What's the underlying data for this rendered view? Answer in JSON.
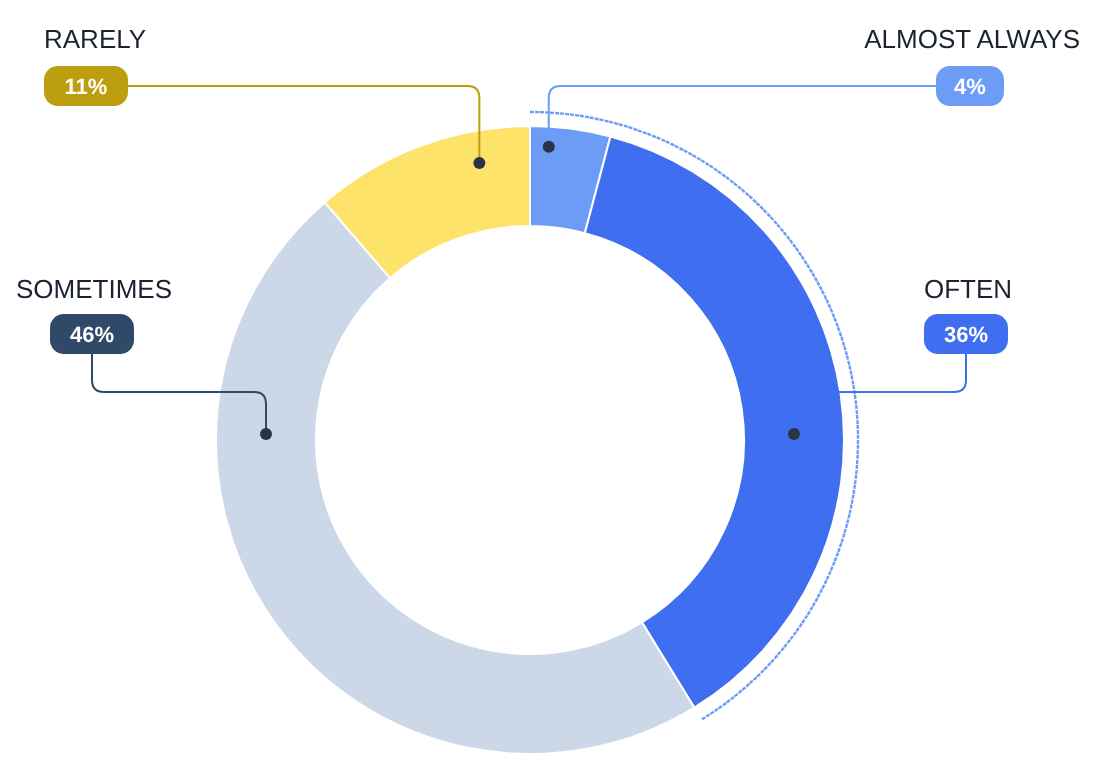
{
  "chart_data": {
    "type": "donut",
    "categories": [
      "ALMOST ALWAYS",
      "OFTEN",
      "SOMETIMES",
      "RARELY"
    ],
    "values": [
      4,
      36,
      46,
      11
    ],
    "colors": [
      "#6d9cf6",
      "#3f6ef0",
      "#ccd8e7",
      "#fde36a"
    ],
    "value_labels": [
      "4%",
      "36%",
      "46%",
      "11%"
    ]
  }
}
